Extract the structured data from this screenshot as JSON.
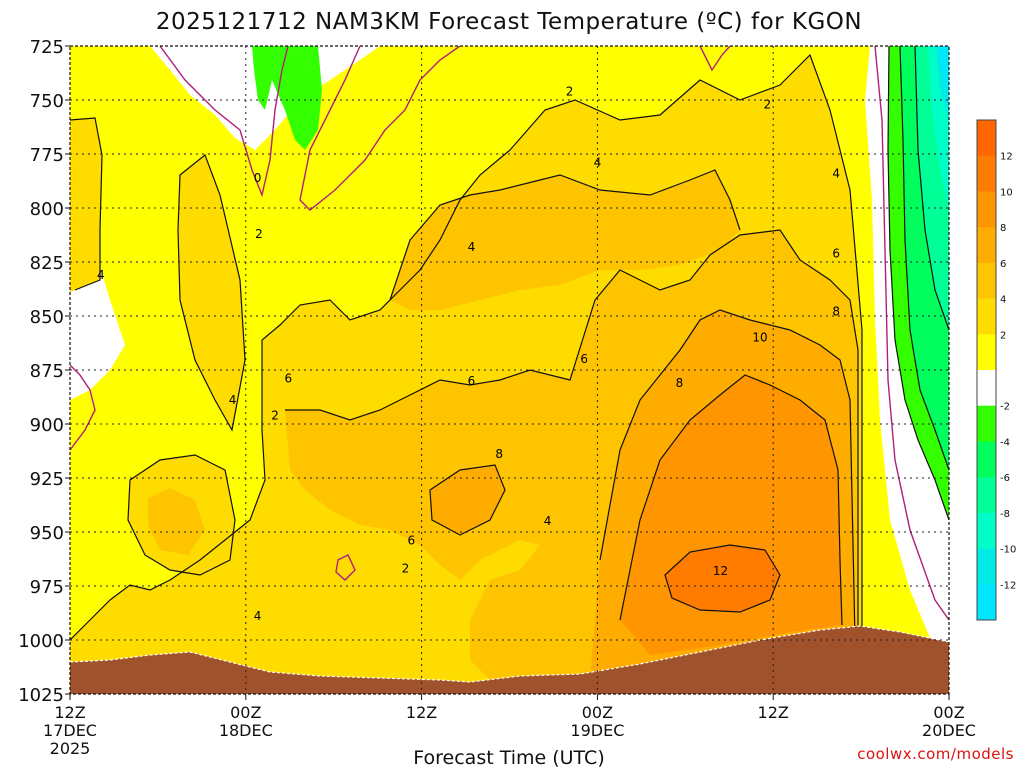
{
  "chart_data": {
    "type": "heatmap",
    "title": "2025121712 NAM3KM Forecast Temperature (ºC) for KGON",
    "xlabel": "Forecast Time (UTC)",
    "ylabel": "",
    "credit": "coolwx.com/models",
    "x_ticks": [
      {
        "l1": "12Z",
        "l2": "17DEC",
        "l3": "2025",
        "hour": 0
      },
      {
        "l1": "00Z",
        "l2": "18DEC",
        "l3": "",
        "hour": 12
      },
      {
        "l1": "12Z",
        "l2": "",
        "l3": "",
        "hour": 24
      },
      {
        "l1": "00Z",
        "l2": "19DEC",
        "l3": "",
        "hour": 36
      },
      {
        "l1": "12Z",
        "l2": "",
        "l3": "",
        "hour": 48
      },
      {
        "l1": "00Z",
        "l2": "20DEC",
        "l3": "",
        "hour": 60
      }
    ],
    "xlim_hours": [
      0,
      60
    ],
    "y_ticks": [
      "725",
      "750",
      "775",
      "800",
      "825",
      "850",
      "875",
      "900",
      "925",
      "950",
      "975",
      "1000",
      "1025"
    ],
    "ylim_hpa": [
      725,
      1025
    ],
    "colorbar": {
      "ticks": [
        "12",
        "10",
        "8",
        "6",
        "4",
        "2",
        "-2",
        "-4",
        "-6",
        "-8",
        "-10",
        "-12"
      ],
      "bins": [
        {
          "color": "#ff6600"
        },
        {
          "color": "#ff7c00"
        },
        {
          "color": "#ff9500"
        },
        {
          "color": "#ffac00"
        },
        {
          "color": "#ffc400"
        },
        {
          "color": "#ffdc00"
        },
        {
          "color": "#ffff00"
        },
        {
          "color": "#ffffff"
        },
        {
          "color": "#33ff00"
        },
        {
          "color": "#00ff5c"
        },
        {
          "color": "#00ff96"
        },
        {
          "color": "#00ffc8"
        },
        {
          "color": "#00ebe6"
        },
        {
          "color": "#00e6ff"
        }
      ]
    },
    "contour_labels": [
      {
        "text": "0",
        "hour": 12.8,
        "hpa": 786
      },
      {
        "text": "2",
        "hour": 12.9,
        "hpa": 812
      },
      {
        "text": "2",
        "hour": 34.1,
        "hpa": 746
      },
      {
        "text": "2",
        "hour": 47.6,
        "hpa": 752
      },
      {
        "text": "2",
        "hour": 14.0,
        "hpa": 896
      },
      {
        "text": "2",
        "hour": 22.9,
        "hpa": 967
      },
      {
        "text": "4",
        "hour": 2.1,
        "hpa": 831
      },
      {
        "text": "4",
        "hour": 11.1,
        "hpa": 889
      },
      {
        "text": "4",
        "hour": 12.8,
        "hpa": 989
      },
      {
        "text": "4",
        "hour": 27.4,
        "hpa": 818
      },
      {
        "text": "4",
        "hour": 36.0,
        "hpa": 779
      },
      {
        "text": "4",
        "hour": 32.6,
        "hpa": 945
      },
      {
        "text": "4",
        "hour": 52.3,
        "hpa": 784
      },
      {
        "text": "6",
        "hour": 14.9,
        "hpa": 879
      },
      {
        "text": "6",
        "hour": 23.3,
        "hpa": 954
      },
      {
        "text": "6",
        "hour": 27.4,
        "hpa": 880
      },
      {
        "text": "6",
        "hour": 35.1,
        "hpa": 870
      },
      {
        "text": "6",
        "hour": 52.3,
        "hpa": 821
      },
      {
        "text": "8",
        "hour": 29.3,
        "hpa": 914
      },
      {
        "text": "8",
        "hour": 41.6,
        "hpa": 881
      },
      {
        "text": "8",
        "hour": 52.3,
        "hpa": 848
      },
      {
        "text": "10",
        "hour": 47.1,
        "hpa": 860
      },
      {
        "text": "12",
        "hour": 44.4,
        "hpa": 968
      }
    ],
    "series": [
      {
        "name": "",
        "range_c": "below -12"
      },
      {
        "name": "",
        "range_c": "-12 to -10"
      }
    ]
  }
}
